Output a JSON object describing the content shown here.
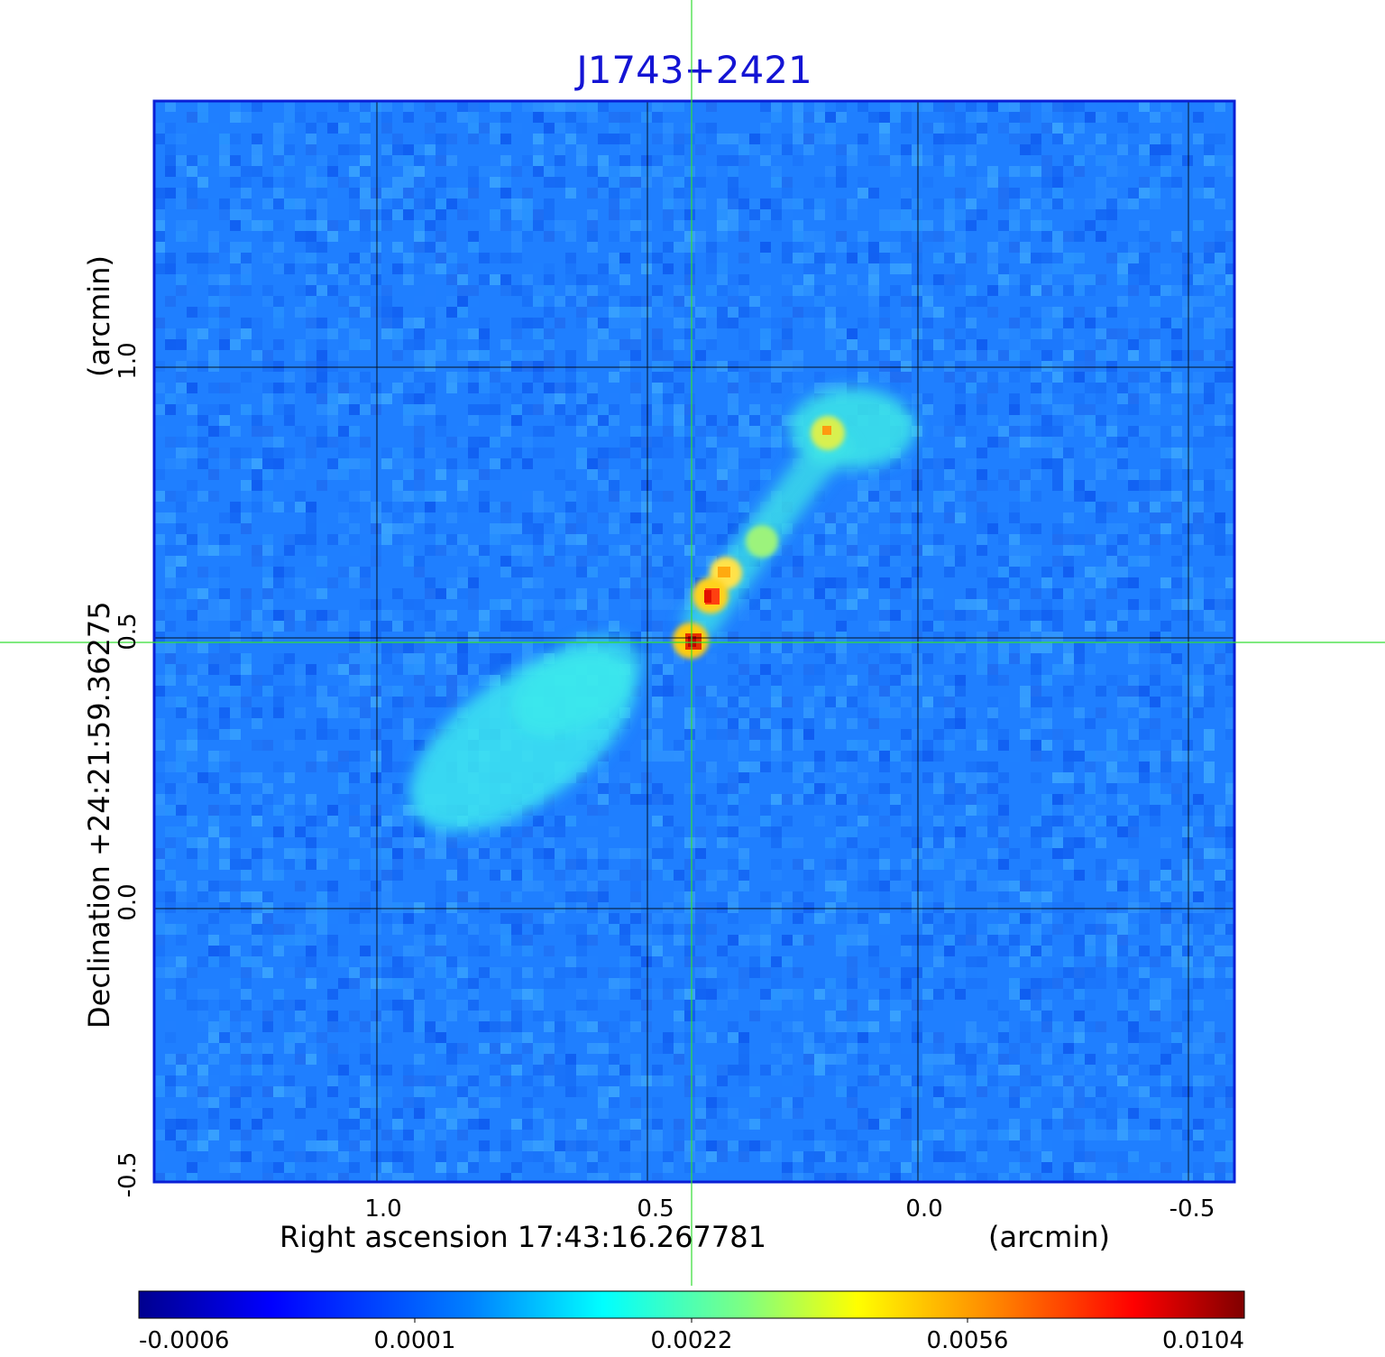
{
  "title": "J1743+2421",
  "image": {
    "description_colors": {
      "background_field": "#1f7fff",
      "frame": "#0a1fd6",
      "title_color": "#1414d4",
      "crosshair": "#33dd33",
      "grid": "#000000"
    }
  },
  "axes": {
    "x_label": "Right ascension  17:43:16.267781",
    "x_unit": "(arcmin)",
    "y_label": "Declination  +24:21:59.36275",
    "y_unit": "(arcmin)",
    "x_ticks": [
      "1.0",
      "0.5",
      "0.0",
      "-0.5"
    ],
    "y_ticks": [
      "1.0",
      "0.5",
      "0.0",
      "-0.5"
    ]
  },
  "colorbar": {
    "labels": [
      "-0.0006",
      "0.0001",
      "0.0022",
      "0.0056",
      "0.0104"
    ],
    "colormap": [
      "#00008f",
      "#0000ff",
      "#0080ff",
      "#00ffff",
      "#80ff80",
      "#ffff00",
      "#ff8000",
      "#ff0000",
      "#800000"
    ]
  }
}
